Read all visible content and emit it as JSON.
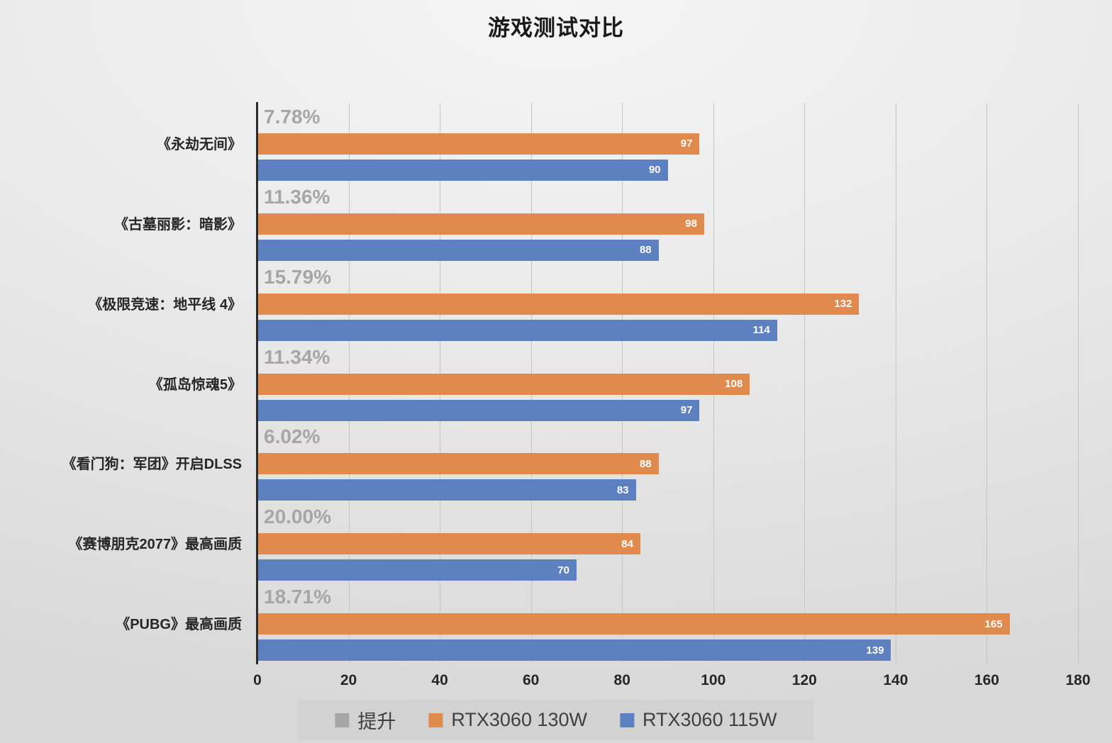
{
  "chart_data": {
    "type": "bar",
    "orientation": "horizontal",
    "title": "游戏测试对比",
    "categories": [
      "《永劫无间》",
      "《古墓丽影：暗影》",
      "《极限竞速：地平线 4》",
      "《孤岛惊魂5》",
      "《看门狗：军团》开启DLSS",
      "《赛博朋克2077》最高画质",
      "《PUBG》最高画质"
    ],
    "improvement_labels": [
      "7.78%",
      "11.36%",
      "15.79%",
      "11.34%",
      "6.02%",
      "20.00%",
      "18.71%"
    ],
    "series": [
      {
        "name": "RTX3060 130W",
        "color": "#e18a4d",
        "values": [
          97,
          98,
          132,
          108,
          88,
          84,
          165
        ]
      },
      {
        "name": "RTX3060 115W",
        "color": "#5d80c1",
        "values": [
          90,
          88,
          114,
          97,
          83,
          70,
          139
        ]
      }
    ],
    "legend": [
      {
        "label": "提升",
        "color": "#a6a6a6"
      },
      {
        "label": "RTX3060 130W",
        "color": "#e18a4d"
      },
      {
        "label": "RTX3060 115W",
        "color": "#5d80c1"
      }
    ],
    "xlim": [
      0,
      180
    ],
    "x_ticks": [
      0,
      20,
      40,
      60,
      80,
      100,
      120,
      140,
      160,
      180
    ],
    "grid": true,
    "legend_position": "bottom"
  },
  "colors": {
    "improvement_text": "#a6a6a6",
    "bar_value_text": "#ffffff",
    "axis_line": "#2b2b2b",
    "gridline": "#c5c5c5",
    "legend_bg": "#d2d2d2"
  }
}
